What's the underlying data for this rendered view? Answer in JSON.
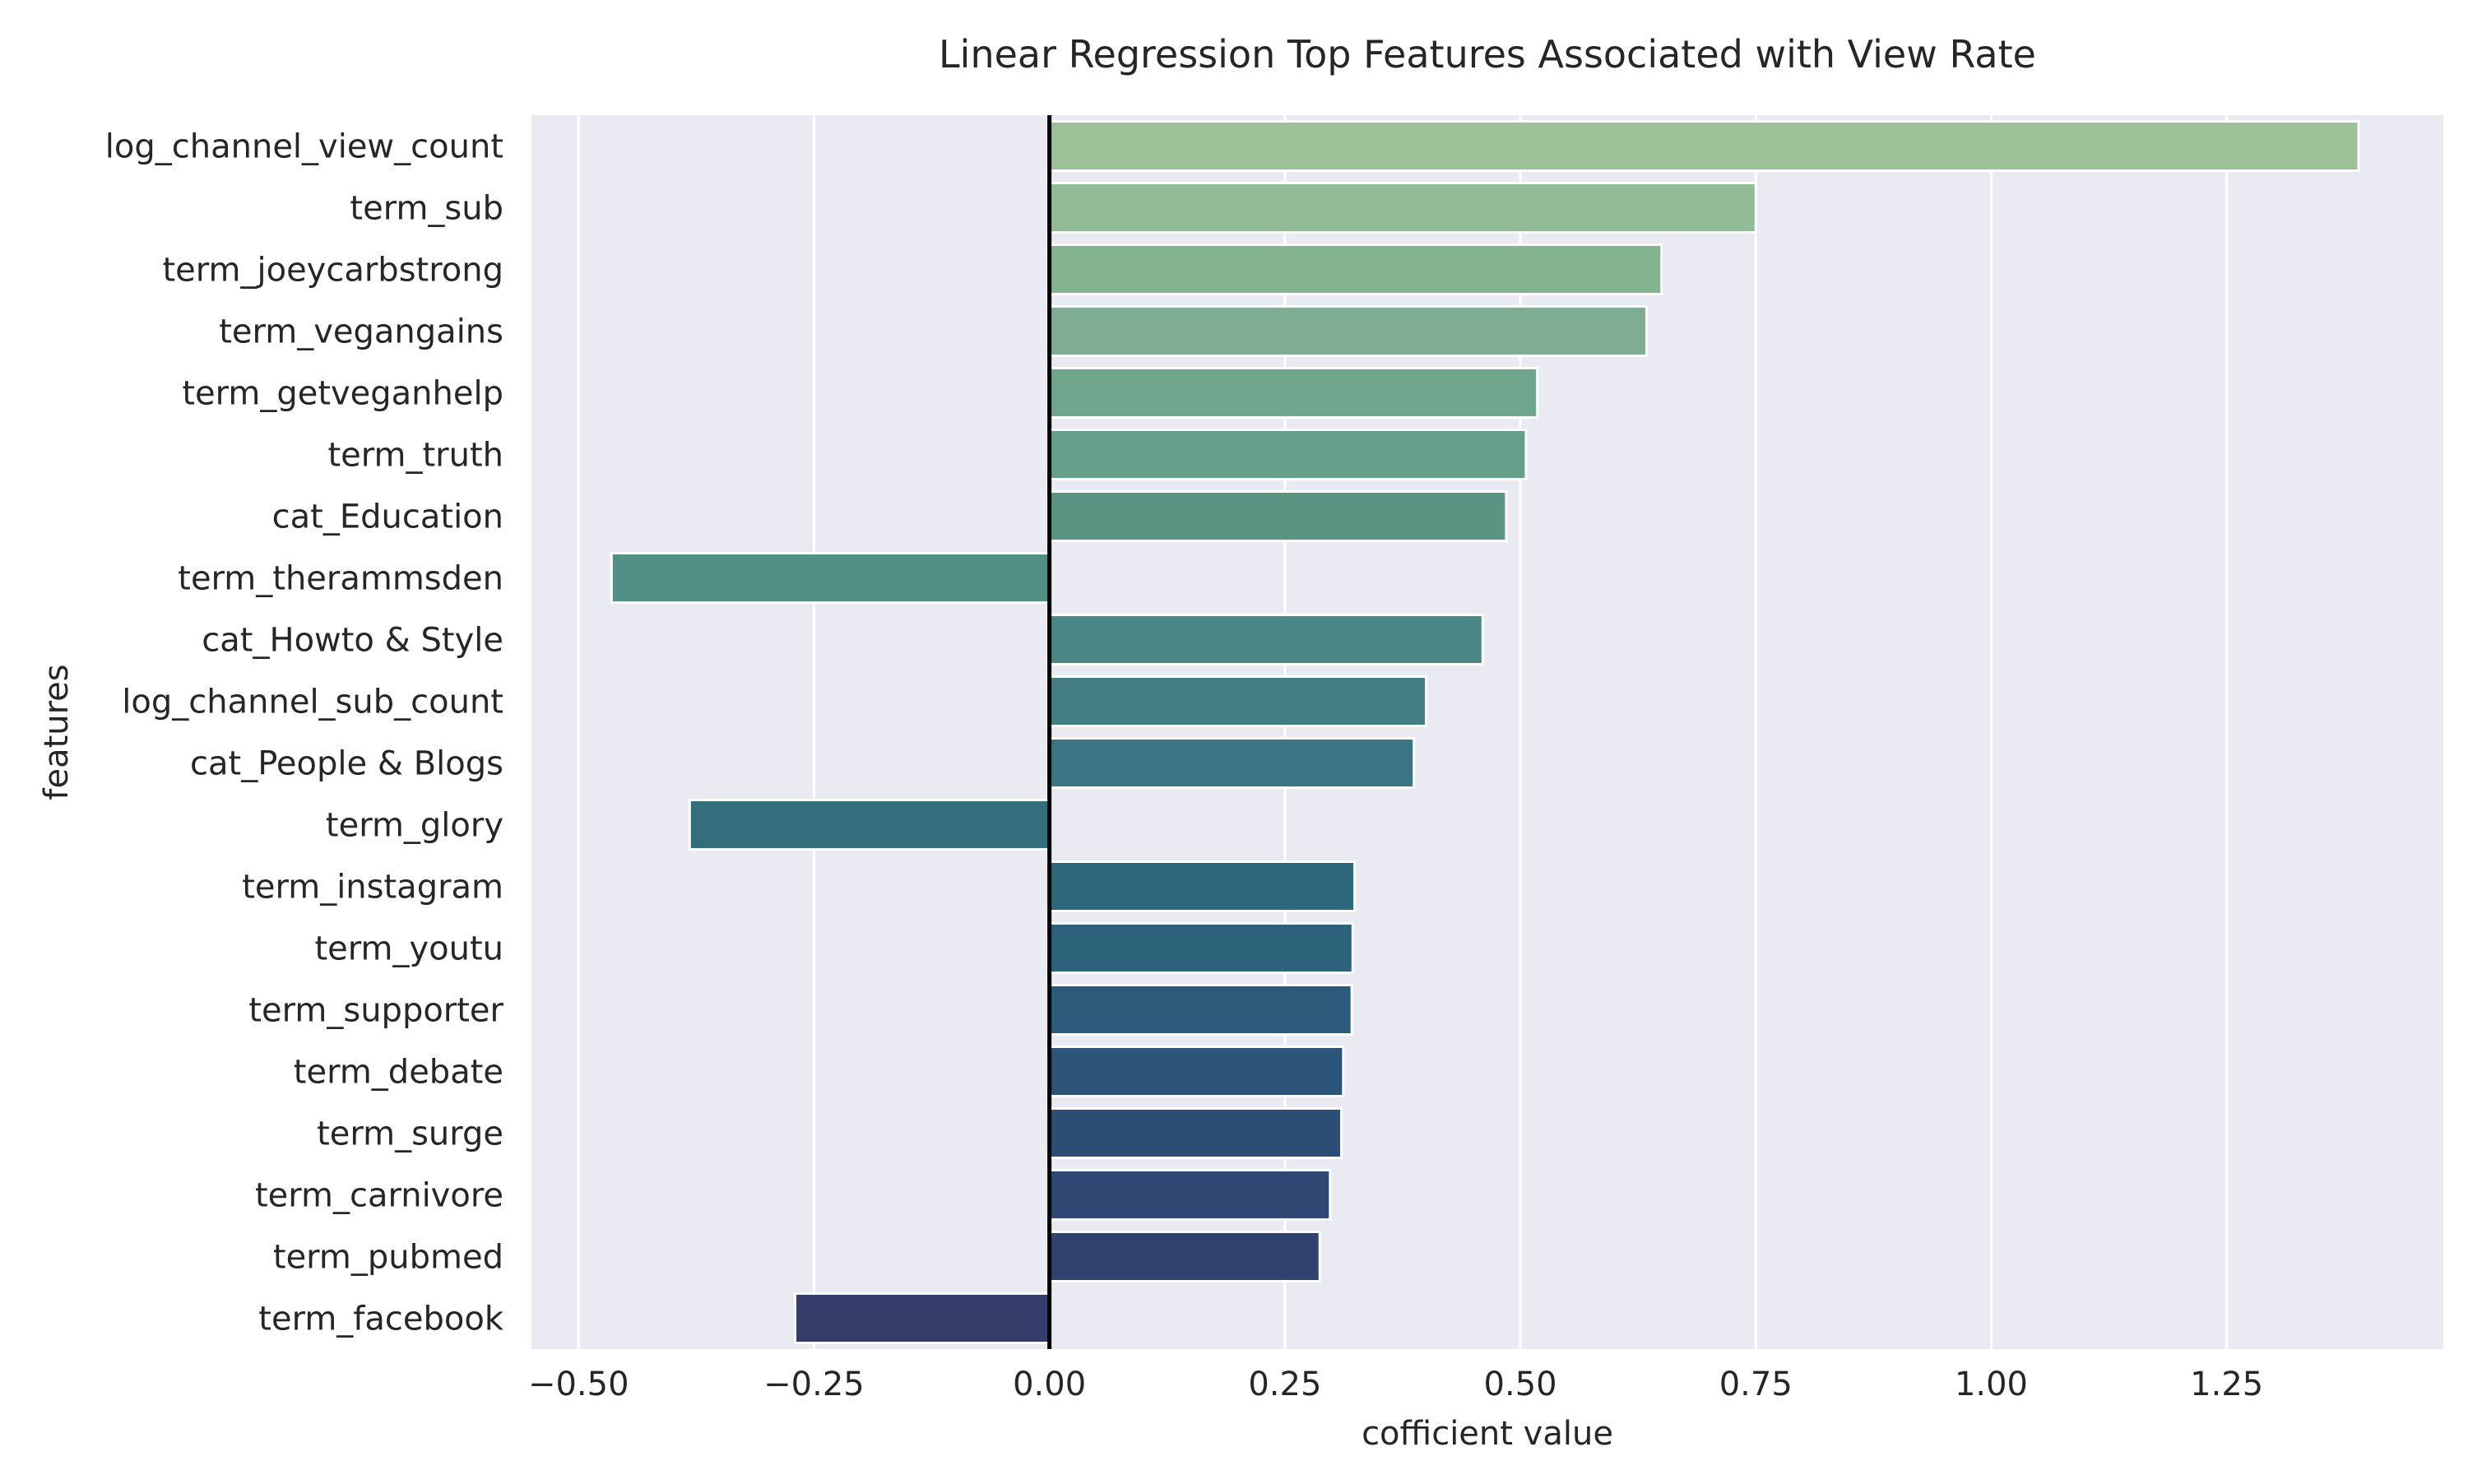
{
  "chart_data": {
    "type": "bar",
    "orientation": "horizontal",
    "title": "Linear Regression Top Features Associated with View Rate",
    "xlabel": "cofficient value",
    "ylabel": "features",
    "xlim": [
      -0.55,
      1.48
    ],
    "xticks": [
      -0.5,
      -0.25,
      0.0,
      0.25,
      0.5,
      0.75,
      1.0,
      1.25
    ],
    "xtick_labels": [
      "−0.50",
      "−0.25",
      "0.00",
      "0.25",
      "0.50",
      "0.75",
      "1.00",
      "1.25"
    ],
    "grid": true,
    "categories": [
      "log_channel_view_count",
      "term_sub",
      "term_joeycarbstrong",
      "term_vegangains",
      "term_getveganhelp",
      "term_truth",
      "cat_Education",
      "term_therammsden",
      "cat_Howto & Style",
      "log_channel_sub_count",
      "cat_People & Blogs",
      "term_glory",
      "term_instagram",
      "term_youtu",
      "term_supporter",
      "term_debate",
      "term_surge",
      "term_carnivore",
      "term_pubmed",
      "term_facebook"
    ],
    "values": [
      1.39,
      0.75,
      0.65,
      0.634,
      0.518,
      0.506,
      0.485,
      -0.465,
      0.46,
      0.4,
      0.387,
      -0.382,
      0.324,
      0.322,
      0.321,
      0.312,
      0.31,
      0.298,
      0.287,
      -0.27
    ],
    "colors": [
      "#9fc19a",
      "#91bb94",
      "#84b391",
      "#7ead93",
      "#6fa68d",
      "#669f8a",
      "#5b9685",
      "#528f85",
      "#4a8686",
      "#447d84",
      "#3c7682",
      "#346e7d",
      "#2e667c",
      "#2c637b",
      "#2b5a7b",
      "#2b5478",
      "#2c4e76",
      "#2e4873",
      "#314270",
      "#343c6a"
    ]
  }
}
